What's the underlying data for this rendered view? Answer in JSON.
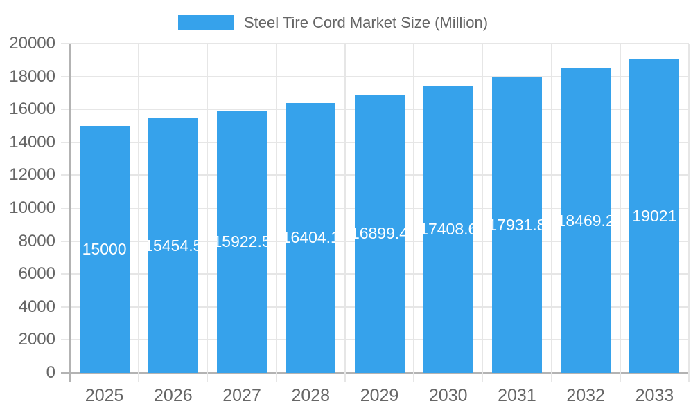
{
  "legend": {
    "label": "Steel Tire Cord Market Size (Million)"
  },
  "colors": {
    "bar": "#36A2EB",
    "grid_line": "#e6e6e6",
    "axis_line": "#b3b3b3",
    "tick_label_text": "#666666",
    "value_label_text": "#ffffff",
    "background": "#ffffff"
  },
  "chart_data": {
    "type": "bar",
    "title": "",
    "xlabel": "",
    "ylabel": "",
    "legend_entries": [
      "Steel Tire Cord Market Size (Million)"
    ],
    "legend_position": "top",
    "grid": true,
    "categories": [
      "2025",
      "2026",
      "2027",
      "2028",
      "2029",
      "2030",
      "2031",
      "2032",
      "2033"
    ],
    "values": [
      15000,
      15454.5,
      15922.5,
      16404.1,
      16899.4,
      17408.6,
      17931.8,
      18469.2,
      19021
    ],
    "value_labels": [
      "15000",
      "15454.5",
      "15922.5",
      "16404.1",
      "16899.4",
      "17408.6",
      "17931.8",
      "18469.2",
      "19021"
    ],
    "ylim": [
      0,
      20000
    ],
    "y_ticks": [
      0,
      2000,
      4000,
      6000,
      8000,
      10000,
      12000,
      14000,
      16000,
      18000,
      20000
    ]
  }
}
